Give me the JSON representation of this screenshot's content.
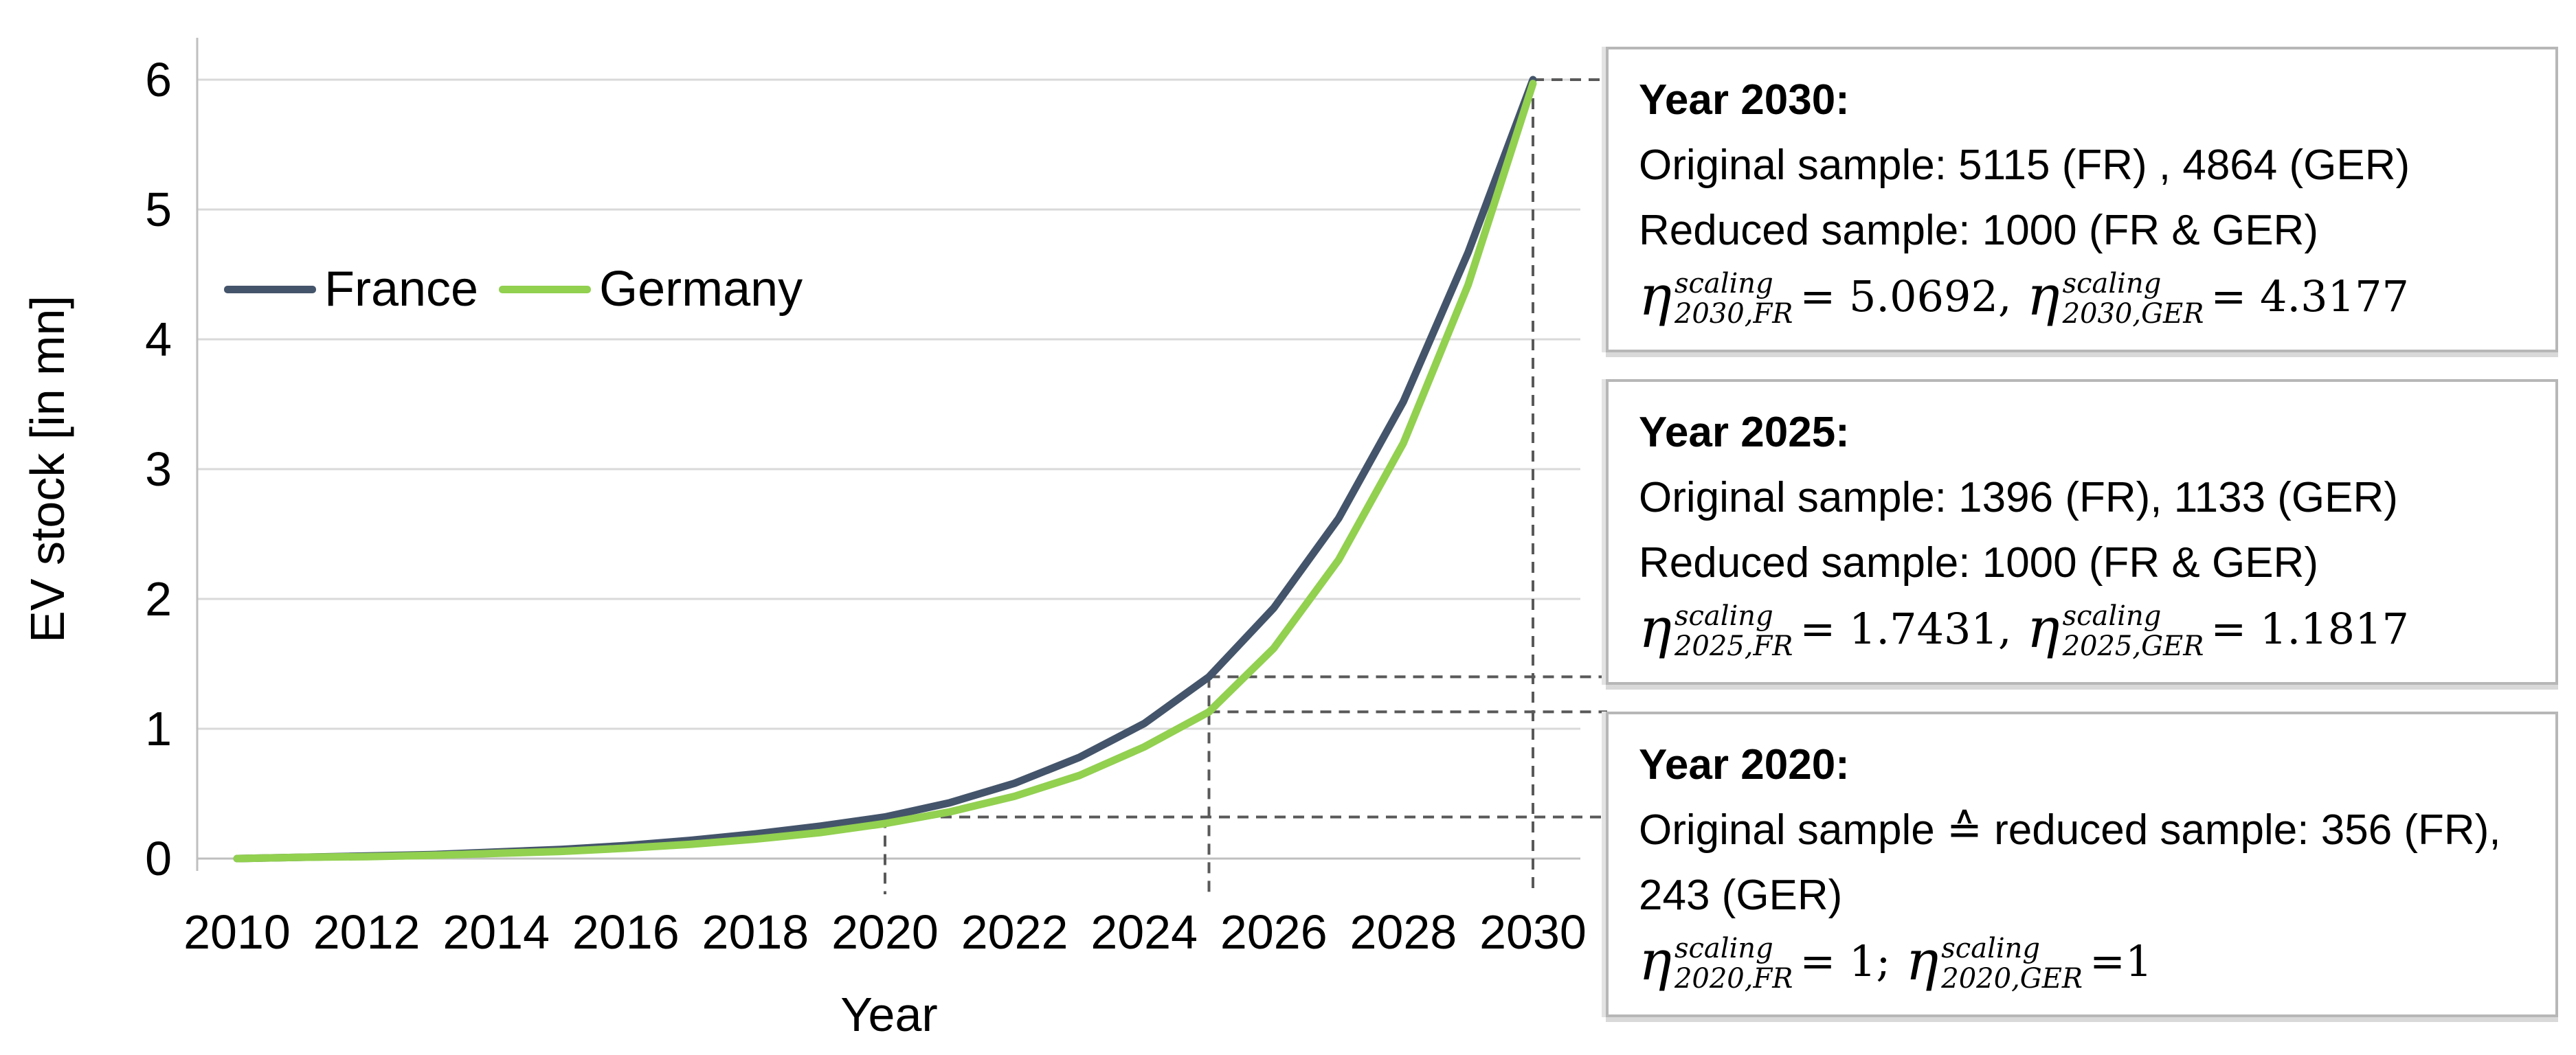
{
  "chart_data": {
    "type": "line",
    "title": "",
    "xlabel": "Year",
    "ylabel": "EV stock [in mn]",
    "x": [
      2010,
      2011,
      2012,
      2013,
      2014,
      2015,
      2016,
      2017,
      2018,
      2019,
      2020,
      2021,
      2022,
      2023,
      2024,
      2025,
      2026,
      2027,
      2028,
      2029,
      2030
    ],
    "x_tick_labels": [
      "2010",
      "2012",
      "2014",
      "2016",
      "2018",
      "2020",
      "2022",
      "2024",
      "2026",
      "2028",
      "2030"
    ],
    "y_ticks": [
      "0",
      "1",
      "2",
      "3",
      "4",
      "5",
      "6"
    ],
    "ylim": [
      0,
      6
    ],
    "grid": "horizontal",
    "legend_position": "inside-top-left",
    "series": [
      {
        "name": "France",
        "color": "#44546A",
        "values": [
          0,
          0.01,
          0.02,
          0.03,
          0.05,
          0.07,
          0.1,
          0.14,
          0.19,
          0.25,
          0.32,
          0.43,
          0.58,
          0.78,
          1.04,
          1.4,
          1.93,
          2.62,
          3.52,
          4.67,
          6.0
        ]
      },
      {
        "name": "Germany",
        "color": "#92D050",
        "values": [
          0,
          0.01,
          0.015,
          0.025,
          0.04,
          0.055,
          0.08,
          0.11,
          0.15,
          0.2,
          0.27,
          0.36,
          0.48,
          0.64,
          0.86,
          1.13,
          1.62,
          2.3,
          3.2,
          4.42,
          5.97
        ]
      }
    ],
    "guides": {
      "verticals": [
        {
          "year": 2020,
          "top_value": 0.32
        },
        {
          "year": 2025,
          "top_value": 1.4
        },
        {
          "year": 2030,
          "top_value": 6.0
        }
      ],
      "horizontals": [
        {
          "year": 2030,
          "value": 6.0
        },
        {
          "year": 2025,
          "value": 1.4
        },
        {
          "year": 2025,
          "value": 1.13
        },
        {
          "year": 2020,
          "value": 0.32
        }
      ]
    }
  },
  "legend": {
    "items": [
      {
        "label": "France",
        "color": "#44546A"
      },
      {
        "label": "Germany",
        "color": "#92D050"
      }
    ]
  },
  "annotations": [
    {
      "title": "Year 2030:",
      "line1": "Original sample: 5115 (FR) , 4864 (GER)",
      "line2": "Reduced sample: 1000 (FR & GER)",
      "eta": [
        {
          "symbol": "η",
          "sup": "scaling",
          "sub": "2030,FR",
          "rhs": "= 5.0692,"
        },
        {
          "symbol": "η",
          "sup": "scaling",
          "sub": "2030,GER",
          "rhs": "= 4.3177"
        }
      ]
    },
    {
      "title": "Year 2025:",
      "line1": "Original sample: 1396 (FR), 1133 (GER)",
      "line2": "Reduced sample: 1000 (FR & GER)",
      "eta": [
        {
          "symbol": "η",
          "sup": "scaling",
          "sub": "2025,FR",
          "rhs": "= 1.7431,"
        },
        {
          "symbol": "η",
          "sup": "scaling",
          "sub": "2025,GER",
          "rhs": "= 1.1817"
        }
      ]
    },
    {
      "title": "Year 2020:",
      "line1": "Original sample ≙ reduced sample: 356 (FR), 243 (GER)",
      "line2": "",
      "eta": [
        {
          "symbol": "η",
          "sup": "scaling",
          "sub": "2020,FR",
          "rhs": "= 1;"
        },
        {
          "symbol": "η",
          "sup": "scaling",
          "sub": "2020,GER",
          "rhs": "=1"
        }
      ]
    }
  ],
  "colors": {
    "grid": "#d9d9d9",
    "axis": "#bfbfbf",
    "dashed": "#595959",
    "box_border": "#b7b7b7",
    "text": "#000000"
  }
}
